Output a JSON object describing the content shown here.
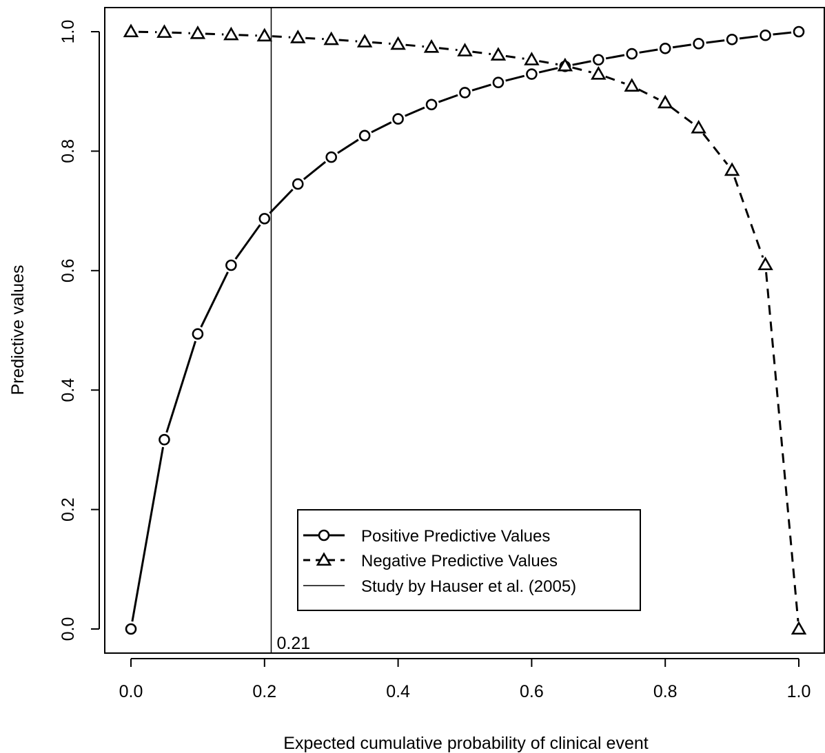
{
  "chart_data": {
    "type": "line",
    "xlabel": "Expected cumulative probability of clinical event",
    "ylabel": "Predictive values",
    "xlim": [
      0.0,
      1.0
    ],
    "ylim": [
      0.0,
      1.0
    ],
    "x_ticks": [
      "0.0",
      "0.2",
      "0.4",
      "0.6",
      "0.8",
      "1.0"
    ],
    "y_ticks": [
      "0.0",
      "0.2",
      "0.4",
      "0.6",
      "0.8",
      "1.0"
    ],
    "grid": false,
    "legend_position": "bottom-center",
    "x": [
      0.0,
      0.05,
      0.1,
      0.15,
      0.2,
      0.25,
      0.3,
      0.35,
      0.4,
      0.45,
      0.5,
      0.55,
      0.6,
      0.65,
      0.7,
      0.75,
      0.8,
      0.85,
      0.9,
      0.95,
      1.0
    ],
    "series": [
      {
        "name": "Positive Predictive Values",
        "marker": "circle",
        "line_style": "solid",
        "values": [
          0.0,
          0.317,
          0.494,
          0.609,
          0.687,
          0.745,
          0.79,
          0.826,
          0.854,
          0.878,
          0.898,
          0.915,
          0.929,
          0.942,
          0.953,
          0.963,
          0.972,
          0.98,
          0.987,
          0.994,
          1.0
        ]
      },
      {
        "name": "Negative Predictive Values",
        "marker": "triangle",
        "line_style": "dashed",
        "values": [
          1.0,
          0.999,
          0.997,
          0.995,
          0.993,
          0.99,
          0.987,
          0.983,
          0.979,
          0.974,
          0.968,
          0.961,
          0.953,
          0.943,
          0.929,
          0.909,
          0.881,
          0.839,
          0.768,
          0.61,
          0.0
        ]
      }
    ],
    "reference_line": {
      "name": "Study by Hauser et al. (2005)",
      "x": 0.21,
      "label": "0.21",
      "line_style": "solid-thin"
    },
    "colors": {
      "line": "#000000",
      "background": "#ffffff"
    }
  }
}
